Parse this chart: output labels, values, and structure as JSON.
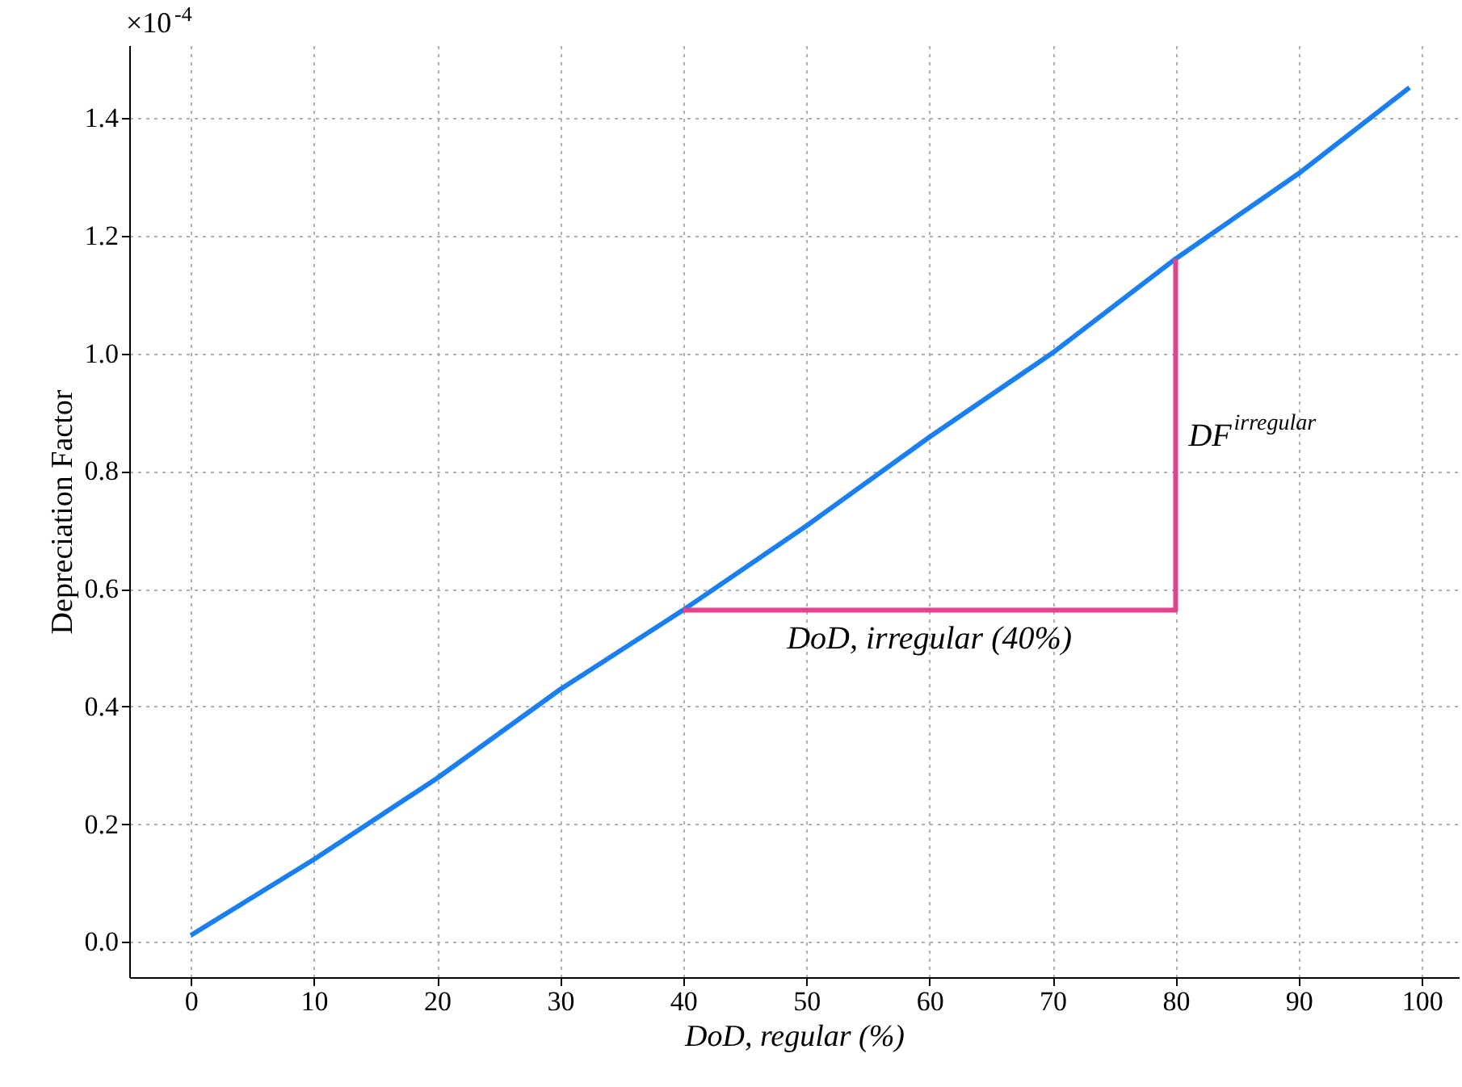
{
  "chart_data": {
    "type": "line",
    "xlabel": "DoD, regular (%)",
    "ylabel": "Depreciation Factor",
    "xlim": [
      -5,
      103
    ],
    "ylim": [
      -0.06,
      1.524
    ],
    "xticks": [
      0,
      10,
      20,
      30,
      40,
      50,
      60,
      70,
      80,
      90,
      100
    ],
    "yticks": [
      {
        "value": 0,
        "label": "0.0"
      },
      0.2,
      0.4,
      0.6,
      0.8,
      {
        "value": 1,
        "label": "1.0"
      },
      1.2,
      1.4
    ],
    "grid": true,
    "series": [
      {
        "color": "#1a7ff0",
        "x": [
          0,
          10,
          20,
          30,
          40,
          50,
          60,
          70,
          80,
          90,
          99
        ],
        "values": [
          0.011,
          0.14,
          0.278,
          0.429,
          0.564,
          0.707,
          0.858,
          1.001,
          1.161,
          1.306,
          1.452
        ]
      },
      {
        "type": "line",
        "color": "#e0448a",
        "x": [
          40,
          80,
          80
        ],
        "values": [
          0.564,
          0.564,
          1.161
        ]
      }
    ],
    "annotations": [
      "×10$^{-4}$",
      {
        "text": "DoD, irregular (40%)",
        "x": 60,
        "y": 0.564
      },
      {
        "text": "DF$^{irregular}$",
        "x": 80,
        "y": 0.86
      }
    ]
  }
}
